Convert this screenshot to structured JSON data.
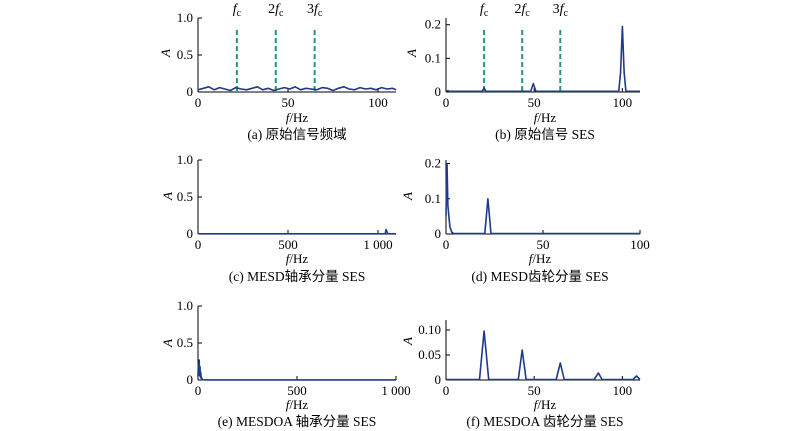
{
  "colors": {
    "signal": "#1f3a8a",
    "harmonic_marker": "#1a9a7a",
    "axis": "#000000"
  },
  "chart_data": [
    {
      "id": "a",
      "type": "line",
      "caption": "(a) 原始信号频域",
      "xlabel_italic": "f",
      "xlabel_unit": "/Hz",
      "ylabel": "A",
      "xlim": [
        0,
        110
      ],
      "ylim": [
        0,
        1.0
      ],
      "xticks": [
        0,
        50,
        100
      ],
      "xtick_labels": [
        "0",
        "50",
        "100"
      ],
      "yticks": [
        0,
        0.5,
        1.0
      ],
      "ytick_labels": [
        "0",
        "0.5",
        "1.0"
      ],
      "harmonic_lines": [
        {
          "x": 21.6,
          "base": "f",
          "mult": "",
          "sub": "c"
        },
        {
          "x": 43.2,
          "base": "f",
          "mult": "2",
          "sub": "c"
        },
        {
          "x": 64.8,
          "base": "f",
          "mult": "3",
          "sub": "c"
        }
      ],
      "series": [
        {
          "x": [
            0,
            3,
            6,
            9,
            12,
            15,
            18,
            21,
            24,
            27,
            30,
            33,
            36,
            39,
            42,
            45,
            48,
            51,
            54,
            57,
            60,
            63,
            66,
            69,
            72,
            75,
            78,
            81,
            84,
            87,
            90,
            93,
            96,
            99,
            102,
            105,
            108,
            110
          ],
          "y": [
            0.03,
            0.05,
            0.07,
            0.03,
            0.06,
            0.04,
            0.02,
            0.06,
            0.04,
            0.03,
            0.05,
            0.07,
            0.03,
            0.05,
            0.02,
            0.04,
            0.06,
            0.04,
            0.07,
            0.03,
            0.05,
            0.04,
            0.03,
            0.06,
            0.05,
            0.02,
            0.05,
            0.07,
            0.04,
            0.03,
            0.06,
            0.04,
            0.05,
            0.03,
            0.06,
            0.04,
            0.05,
            0.03
          ]
        }
      ]
    },
    {
      "id": "b",
      "type": "line",
      "caption": "(b) 原始信号 SES",
      "xlabel_italic": "f",
      "xlabel_unit": "/Hz",
      "ylabel": "A",
      "xlim": [
        0,
        110
      ],
      "ylim": [
        0,
        0.22
      ],
      "xticks": [
        0,
        50,
        100
      ],
      "xtick_labels": [
        "0",
        "50",
        "100"
      ],
      "yticks": [
        0,
        0.1,
        0.2
      ],
      "ytick_labels": [
        "0",
        "0.1",
        "0.2"
      ],
      "harmonic_lines": [
        {
          "x": 21.6,
          "base": "f",
          "mult": "",
          "sub": "c"
        },
        {
          "x": 43.2,
          "base": "f",
          "mult": "2",
          "sub": "c"
        },
        {
          "x": 64.8,
          "base": "f",
          "mult": "3",
          "sub": "c"
        }
      ],
      "series": [
        {
          "x": [
            0,
            1,
            2,
            20.5,
            21.6,
            22.7,
            48,
            49.5,
            51,
            98,
            99,
            100,
            101,
            102,
            110
          ],
          "y": [
            0.002,
            0.004,
            0.002,
            0.002,
            0.012,
            0.002,
            0.002,
            0.025,
            0.002,
            0.002,
            0.06,
            0.195,
            0.06,
            0.002,
            0.002
          ]
        }
      ]
    },
    {
      "id": "c",
      "type": "line",
      "caption": "(c) MESD轴承分量 SES",
      "xlabel_italic": "f",
      "xlabel_unit": "/Hz",
      "ylabel": "A",
      "xlim": [
        0,
        1100
      ],
      "ylim": [
        0,
        1.0
      ],
      "xticks": [
        0,
        500,
        1000
      ],
      "xtick_labels": [
        "0",
        "500",
        "1 000"
      ],
      "yticks": [
        0,
        0.5,
        1.0
      ],
      "ytick_labels": [
        "0",
        "0.5",
        "1.0"
      ],
      "harmonic_lines": [],
      "series": [
        {
          "x": [
            0,
            5,
            10,
            1040,
            1045,
            1050,
            1055,
            1100
          ],
          "y": [
            0.004,
            0.006,
            0.003,
            0.003,
            0.06,
            0.03,
            0.003,
            0.003
          ]
        }
      ]
    },
    {
      "id": "d",
      "type": "line",
      "caption": "(d) MESD齿轮分量 SES",
      "xlabel_italic": "f",
      "xlabel_unit": "/Hz",
      "ylabel": "A",
      "xlim": [
        0,
        100
      ],
      "ylim": [
        0,
        0.21
      ],
      "xticks": [
        0,
        50,
        100
      ],
      "xtick_labels": [
        "0",
        "50",
        "100"
      ],
      "yticks": [
        0,
        0.1,
        0.2
      ],
      "ytick_labels": [
        "0",
        "0.1",
        "0.2"
      ],
      "harmonic_lines": [],
      "series": [
        {
          "x": [
            0,
            0.5,
            1,
            2,
            3,
            4,
            20,
            21.6,
            23.2,
            100
          ],
          "y": [
            0.05,
            0.2,
            0.08,
            0.02,
            0.005,
            0.001,
            0.001,
            0.1,
            0.001,
            0.001
          ]
        }
      ]
    },
    {
      "id": "e",
      "type": "line",
      "caption": "(e) MESDOA 轴承分量 SES",
      "xlabel_italic": "f",
      "xlabel_unit": "/Hz",
      "ylabel": "A",
      "xlim": [
        0,
        1000
      ],
      "ylim": [
        0,
        1.0
      ],
      "xticks": [
        0,
        500,
        1000
      ],
      "xtick_labels": [
        "0",
        "500",
        "1 000"
      ],
      "yticks": [
        0,
        0.5,
        1.0
      ],
      "ytick_labels": [
        "0",
        "0.5",
        "1.0"
      ],
      "harmonic_lines": [],
      "series": [
        {
          "x": [
            0,
            2,
            4,
            6,
            8,
            10,
            12,
            14,
            16,
            18,
            22,
            30,
            1000
          ],
          "y": [
            0.05,
            0.22,
            0.08,
            0.27,
            0.06,
            0.18,
            0.04,
            0.1,
            0.02,
            0.03,
            0.005,
            0.002,
            0.002
          ]
        }
      ]
    },
    {
      "id": "f",
      "type": "line",
      "caption": "(f) MESDOA 齿轮分量 SES",
      "xlabel_italic": "f",
      "xlabel_unit": "/Hz",
      "ylabel": "A",
      "xlim": [
        0,
        110
      ],
      "ylim": [
        0,
        0.12
      ],
      "xticks": [
        0,
        50,
        100
      ],
      "xtick_labels": [
        "0",
        "50",
        "100"
      ],
      "yticks": [
        0,
        0.05,
        0.1
      ],
      "ytick_labels": [
        "0",
        "0.05",
        "0.10"
      ],
      "harmonic_lines": [],
      "series": [
        {
          "x": [
            0,
            19,
            21.6,
            24.2,
            41,
            43.2,
            45.4,
            62.5,
            64.8,
            67,
            84,
            86.4,
            88.5,
            106,
            108,
            110
          ],
          "y": [
            0.001,
            0.001,
            0.098,
            0.001,
            0.001,
            0.06,
            0.001,
            0.001,
            0.034,
            0.001,
            0.001,
            0.014,
            0.001,
            0.001,
            0.008,
            0.001
          ]
        }
      ]
    }
  ]
}
